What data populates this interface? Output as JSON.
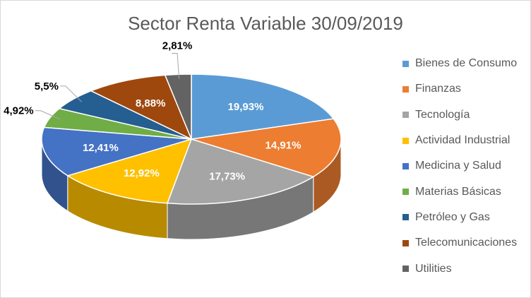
{
  "chart_data": {
    "type": "pie",
    "title": "Sector Renta Variable 30/09/2019",
    "slices": [
      {
        "name": "Bienes de Consumo",
        "value": 19.93,
        "label": "19,93%",
        "color": "#5b9bd5"
      },
      {
        "name": "Finanzas",
        "value": 14.91,
        "label": "14,91%",
        "color": "#ed7d31"
      },
      {
        "name": "Tecnología",
        "value": 17.73,
        "label": "17,73%",
        "color": "#a5a5a5"
      },
      {
        "name": "Actividad Industrial",
        "value": 12.92,
        "label": "12,92%",
        "color": "#ffc000"
      },
      {
        "name": "Medicina y Salud",
        "value": 12.41,
        "label": "12,41%",
        "color": "#4472c4"
      },
      {
        "name": "Materias Básicas",
        "value": 4.92,
        "label": "4,92%",
        "color": "#70ad47"
      },
      {
        "name": "Petróleo y Gas",
        "value": 5.5,
        "label": "5,5%",
        "color": "#255e91"
      },
      {
        "name": "Telecomunicaciones",
        "value": 8.88,
        "label": "8,88%",
        "color": "#9e480e"
      },
      {
        "name": "Utilities",
        "value": 2.81,
        "label": "2,81%",
        "color": "#636363"
      }
    ],
    "legend_position": "right",
    "style": "3d-pie"
  }
}
